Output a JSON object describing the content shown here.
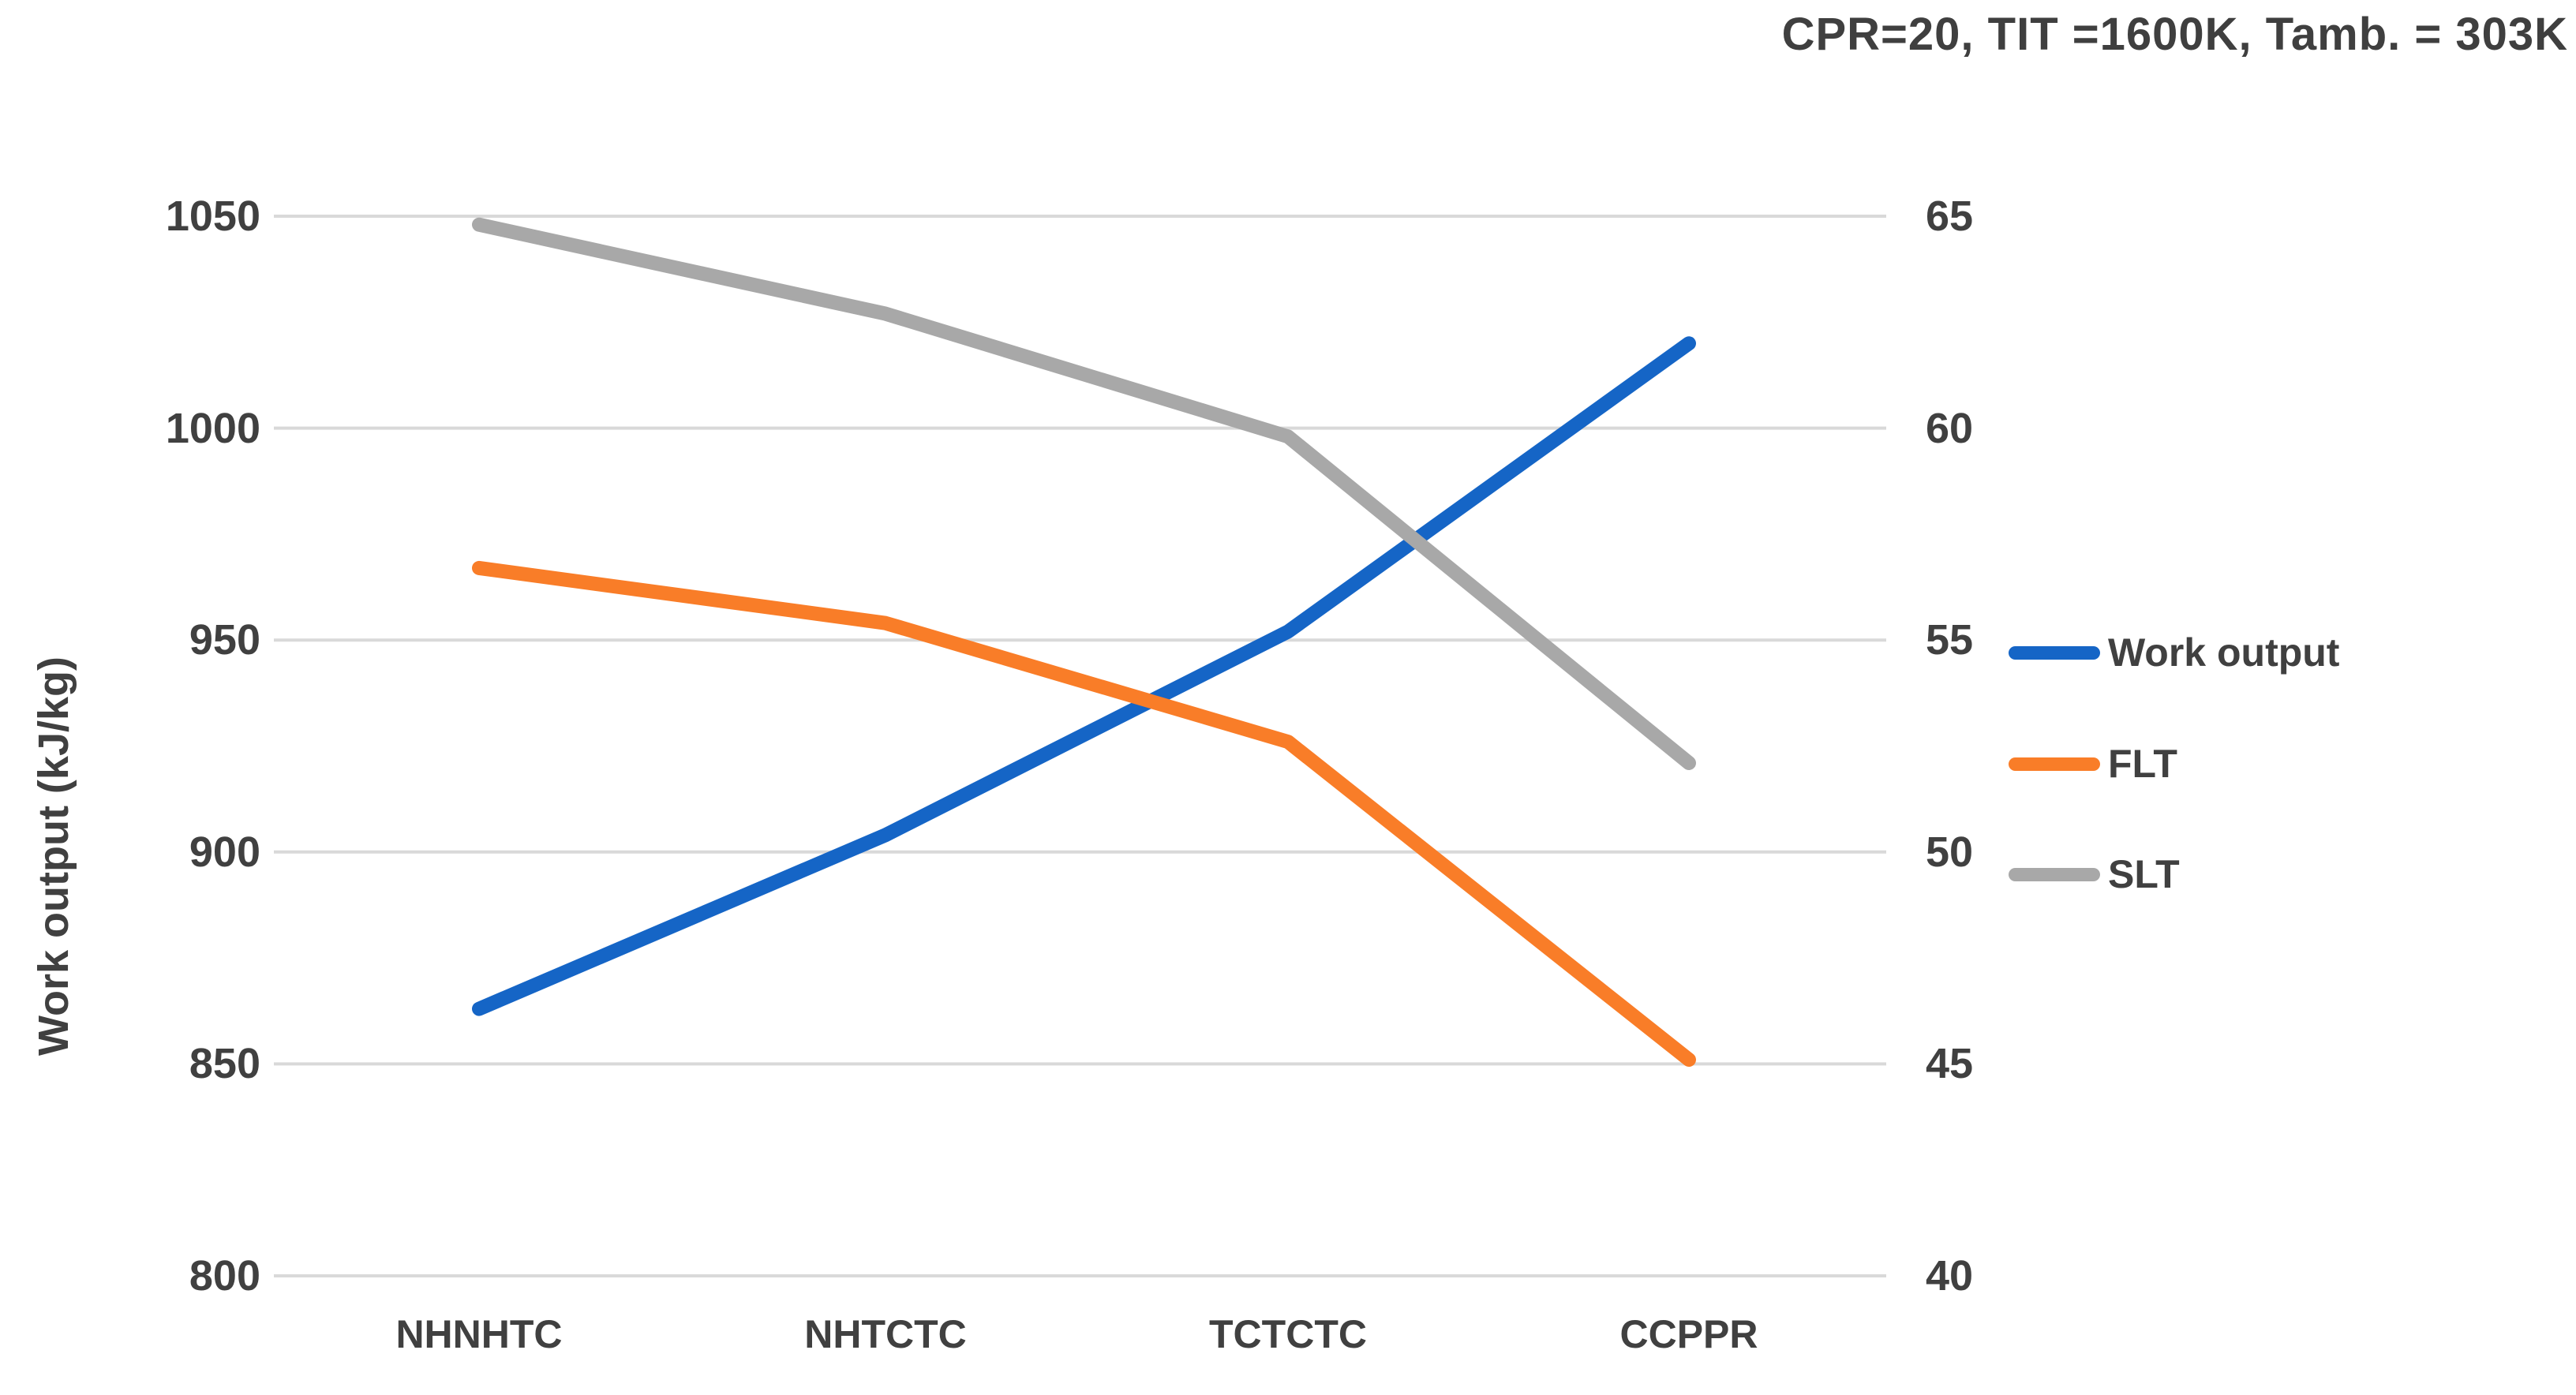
{
  "title": "CPR=20, TIT =1600K, Tamb. = 303K",
  "colors": {
    "work_output": "#1565C6",
    "flt": "#F97D28",
    "slt": "#A8A8A8",
    "gridline": "#D9D9D9",
    "text": "#404040"
  },
  "chart_data": {
    "type": "line",
    "title": "CPR=20, TIT =1600K, Tamb. = 303K",
    "categories": [
      "NHNHTC",
      "NHTCTC",
      "TCTCTC",
      "CCPPR"
    ],
    "series": [
      {
        "name": "Work output",
        "axis": "left",
        "color": "#1565C6",
        "values": [
          863,
          904,
          952,
          1020
        ]
      },
      {
        "name": "FLT",
        "axis": "right",
        "color": "#F97D28",
        "values": [
          56.7,
          55.4,
          52.6,
          45.1
        ]
      },
      {
        "name": "SLT",
        "axis": "right",
        "color": "#A8A8A8",
        "values": [
          64.8,
          62.7,
          59.8,
          52.1
        ]
      }
    ],
    "left_axis": {
      "label": "Work output (kJ/kg)",
      "ticks": [
        1050,
        1000,
        950,
        900,
        850,
        800
      ],
      "range": [
        800,
        1050
      ]
    },
    "right_axis": {
      "label": "",
      "ticks": [
        65,
        60,
        55,
        50,
        45,
        40
      ],
      "range": [
        40,
        65
      ]
    },
    "grid": true,
    "legend_position": "right"
  }
}
